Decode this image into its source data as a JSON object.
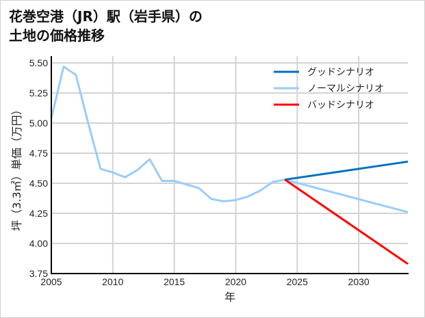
{
  "title": {
    "line1": "花巻空港（JR）駅（岩手県）の",
    "line2": "土地の価格推移"
  },
  "chart_data": {
    "type": "line",
    "title": "花巻空港（JR）駅（岩手県）の土地の価格推移",
    "xlabel": "年",
    "ylabel": "坪（3.3㎡）単価（万円）",
    "xlim": [
      2005,
      2034
    ],
    "ylim": [
      3.75,
      5.5
    ],
    "xticks": [
      "2005",
      "2010",
      "2015",
      "2020",
      "2025",
      "2030"
    ],
    "yticks": [
      "3.75",
      "4.00",
      "4.25",
      "4.50",
      "4.75",
      "5.00",
      "5.25",
      "5.50"
    ],
    "grid": true,
    "legend_position": "upper right",
    "series": [
      {
        "name": "グッドシナリオ",
        "color": "#0070C0",
        "x": [
          2024,
          2034
        ],
        "values": [
          4.53,
          4.68
        ]
      },
      {
        "name": "ノーマルシナリオ",
        "color": "#99CCFF",
        "x": [
          2005,
          2006,
          2007,
          2008,
          2009,
          2010,
          2011,
          2012,
          2013,
          2014,
          2015,
          2016,
          2017,
          2018,
          2019,
          2020,
          2021,
          2022,
          2023,
          2024,
          2034
        ],
        "values": [
          5.04,
          5.47,
          5.4,
          5.0,
          4.62,
          4.59,
          4.55,
          4.61,
          4.7,
          4.52,
          4.52,
          4.49,
          4.46,
          4.37,
          4.35,
          4.36,
          4.39,
          4.44,
          4.51,
          4.53,
          4.26
        ]
      },
      {
        "name": "バッドシナリオ",
        "color": "#FF0000",
        "x": [
          2024,
          2034
        ],
        "values": [
          4.53,
          3.83
        ]
      }
    ]
  }
}
